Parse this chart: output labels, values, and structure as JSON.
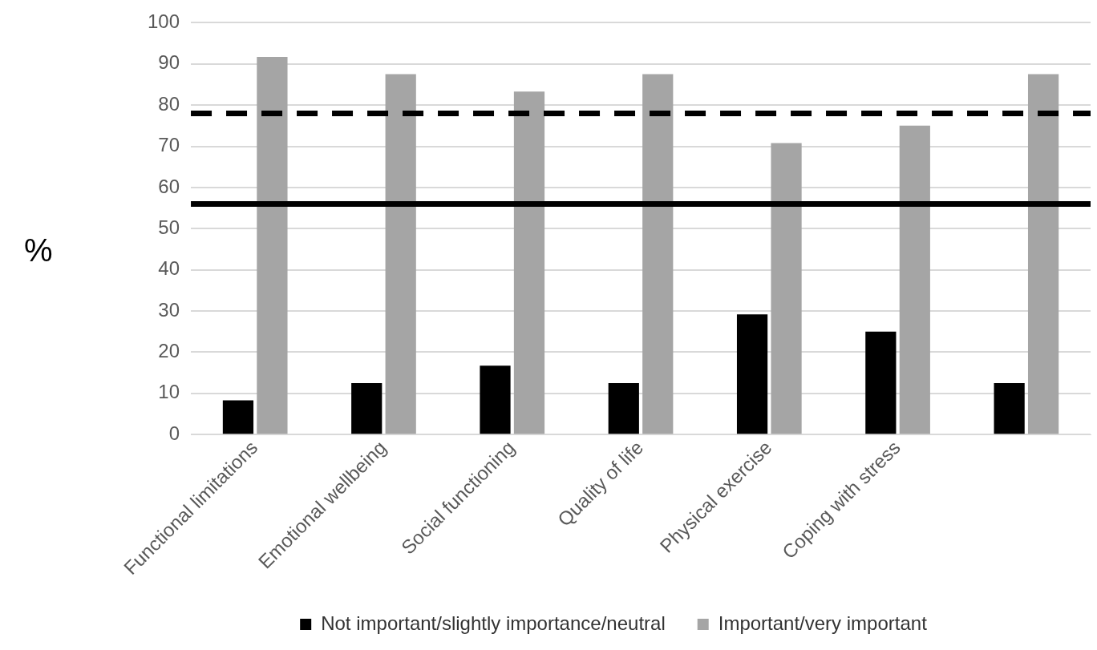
{
  "chart_data": {
    "type": "bar",
    "ylabel": "%",
    "categories": [
      "Functional limitations",
      "Emotional wellbeing",
      "Social functioning",
      "Quality of life",
      "Physical exercise",
      "Coping with stress",
      null
    ],
    "series": [
      {
        "name": "Not important/slightly importance/neutral",
        "color": "#000000",
        "values": [
          8.3,
          12.5,
          16.7,
          12.5,
          29.2,
          25,
          12.5
        ]
      },
      {
        "name": "Important/very important",
        "color": "#a5a5a5",
        "values": [
          91.7,
          87.5,
          83.3,
          87.5,
          70.8,
          75,
          87.5
        ]
      }
    ],
    "ylim": [
      0,
      100
    ],
    "yticks": [
      0,
      10,
      20,
      30,
      40,
      50,
      60,
      70,
      80,
      90,
      100
    ],
    "grid": "y",
    "legend": "bottom",
    "ref_lines": [
      {
        "axis": "y",
        "value": 78,
        "color": "#000000",
        "line_style": "dashed"
      },
      {
        "axis": "y",
        "value": 56,
        "color": "#000000",
        "line_style": "solid"
      }
    ]
  }
}
